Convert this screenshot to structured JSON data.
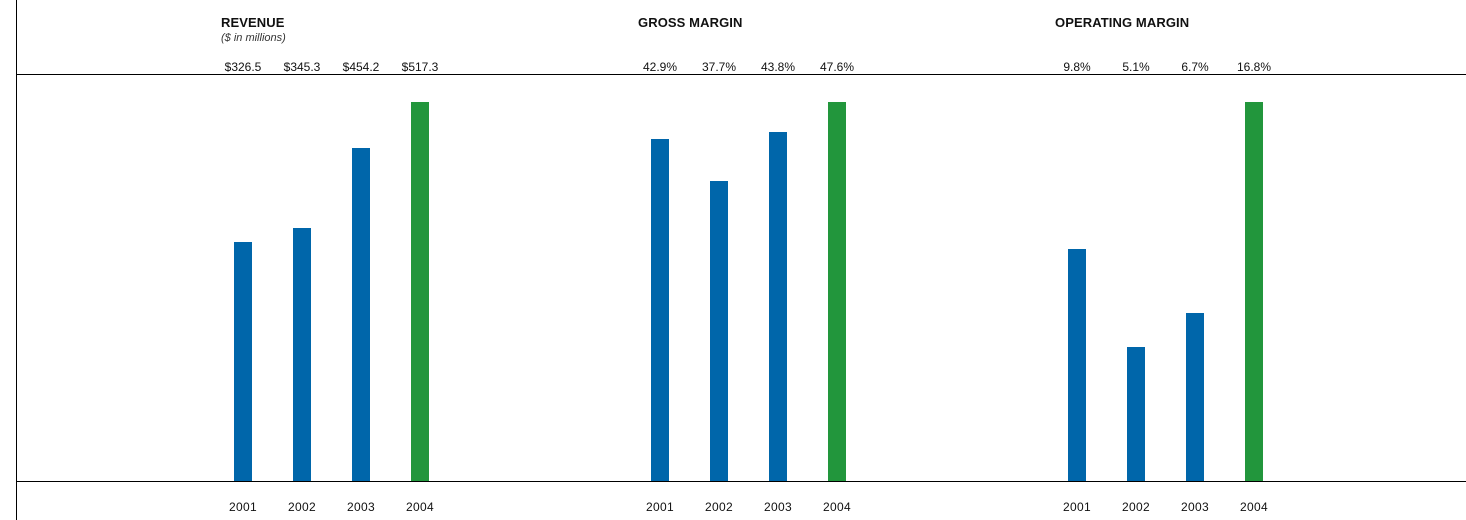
{
  "colors": {
    "bar": "#0066aa",
    "highlight": "#22963c"
  },
  "chart_data": [
    {
      "type": "bar",
      "title": "REVENUE",
      "subtitle": "($ in millions)",
      "categories": [
        "2001",
        "2002",
        "2003",
        "2004"
      ],
      "values": [
        326.5,
        345.3,
        454.2,
        517.3
      ],
      "value_labels": [
        "$326.5",
        "$345.3",
        "$454.2",
        "$517.3"
      ],
      "highlight_index": 3,
      "ylim": [
        0,
        517.3
      ],
      "grid": false,
      "legend": "none"
    },
    {
      "type": "bar",
      "title": "GROSS MARGIN",
      "categories": [
        "2001",
        "2002",
        "2003",
        "2004"
      ],
      "values": [
        42.9,
        37.7,
        43.8,
        47.6
      ],
      "value_labels": [
        "42.9%",
        "37.7%",
        "43.8%",
        "47.6%"
      ],
      "highlight_index": 3,
      "ylim": [
        0,
        47.6
      ],
      "grid": false,
      "legend": "none"
    },
    {
      "type": "bar",
      "title": "OPERATING MARGIN",
      "categories": [
        "2001",
        "2002",
        "2003",
        "2004"
      ],
      "values": [
        9.8,
        5.1,
        6.7,
        16.8
      ],
      "value_labels": [
        "9.8%",
        "5.1%",
        "6.7%",
        "16.8%"
      ],
      "highlight_index": 3,
      "ylim": [
        -1.3,
        16.8
      ],
      "grid": false,
      "legend": "none"
    }
  ]
}
